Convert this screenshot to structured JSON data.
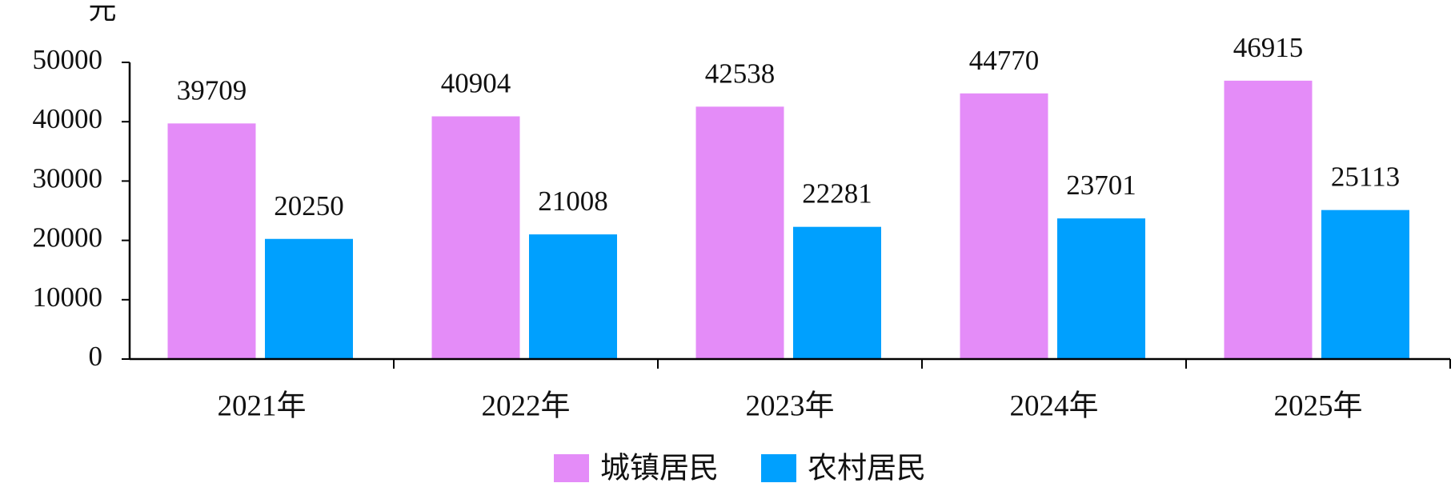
{
  "chart_data": {
    "type": "bar",
    "y_axis_label": "元",
    "categories": [
      "2021年",
      "2022年",
      "2023年",
      "2024年",
      "2025年"
    ],
    "series": [
      {
        "name": "城镇居民",
        "color": "#e48cf8",
        "values": [
          39709,
          40904,
          42538,
          44770,
          46915
        ]
      },
      {
        "name": "农村居民",
        "color": "#00a0fe",
        "values": [
          20250,
          21008,
          22281,
          23701,
          25113
        ]
      }
    ],
    "ylim": [
      0,
      50000
    ],
    "yticks": [
      0,
      10000,
      20000,
      30000,
      40000,
      50000
    ],
    "legend": "bottom"
  }
}
